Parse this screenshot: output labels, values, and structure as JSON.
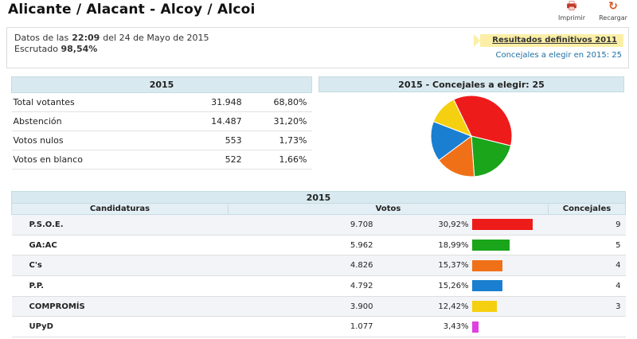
{
  "header": {
    "title": "Alicante / Alacant - Alcoy / Alcoi",
    "print_label": "Imprimir",
    "reload_label": "Recargar",
    "print_icon": "printer-icon",
    "reload_icon": "reload-icon"
  },
  "info": {
    "datos_prefix": "Datos de las",
    "time": "22:09",
    "date_text": "del 24 de Mayo de 2015",
    "escrutado_label": "Escrutado",
    "escrutado_value": "98,54%",
    "results_link": "Resultados definitivos 2011",
    "concejales_note": "Concejales a elegir en 2015: 25"
  },
  "summary": {
    "header": "2015",
    "rows": [
      {
        "label": "Total votantes",
        "value": "31.948",
        "pct": "68,80%"
      },
      {
        "label": "Abstención",
        "value": "14.487",
        "pct": "31,20%"
      },
      {
        "label": "Votos nulos",
        "value": "553",
        "pct": "1,73%"
      },
      {
        "label": "Votos en blanco",
        "value": "522",
        "pct": "1,66%"
      }
    ]
  },
  "pie": {
    "header": "2015 - Concejales a elegir: 25"
  },
  "results": {
    "header": "2015",
    "col_candidaturas": "Candidaturas",
    "col_votos": "Votos",
    "col_concejales": "Concejales",
    "rows": [
      {
        "party": "P.S.O.E.",
        "votes": "9.708",
        "pct": "30,92%",
        "seats": "9"
      },
      {
        "party": "GA:AC",
        "votes": "5.962",
        "pct": "18,99%",
        "seats": "5"
      },
      {
        "party": "C's",
        "votes": "4.826",
        "pct": "15,37%",
        "seats": "4"
      },
      {
        "party": "P.P.",
        "votes": "4.792",
        "pct": "15,26%",
        "seats": "4"
      },
      {
        "party": "COMPROMÍS",
        "votes": "3.900",
        "pct": "12,42%",
        "seats": "3"
      },
      {
        "party": "UPyD",
        "votes": "1.077",
        "pct": "3,43%",
        "seats": ""
      }
    ]
  },
  "chart_data": {
    "type": "pie",
    "categories": [
      "P.S.O.E.",
      "GA:AC",
      "C's",
      "P.P.",
      "COMPROMÍS"
    ],
    "values": [
      9,
      5,
      4,
      4,
      3
    ],
    "colors": [
      "#ee1b1b",
      "#1aa51a",
      "#f07018",
      "#1a7fd0",
      "#f5d010"
    ],
    "bar_percentages": [
      30.92,
      18.99,
      15.37,
      15.26,
      12.42,
      3.43
    ],
    "bar_colors": [
      "#ee1b1b",
      "#1aa51a",
      "#f07018",
      "#1a7fd0",
      "#f5d010",
      "#e040e0"
    ]
  }
}
